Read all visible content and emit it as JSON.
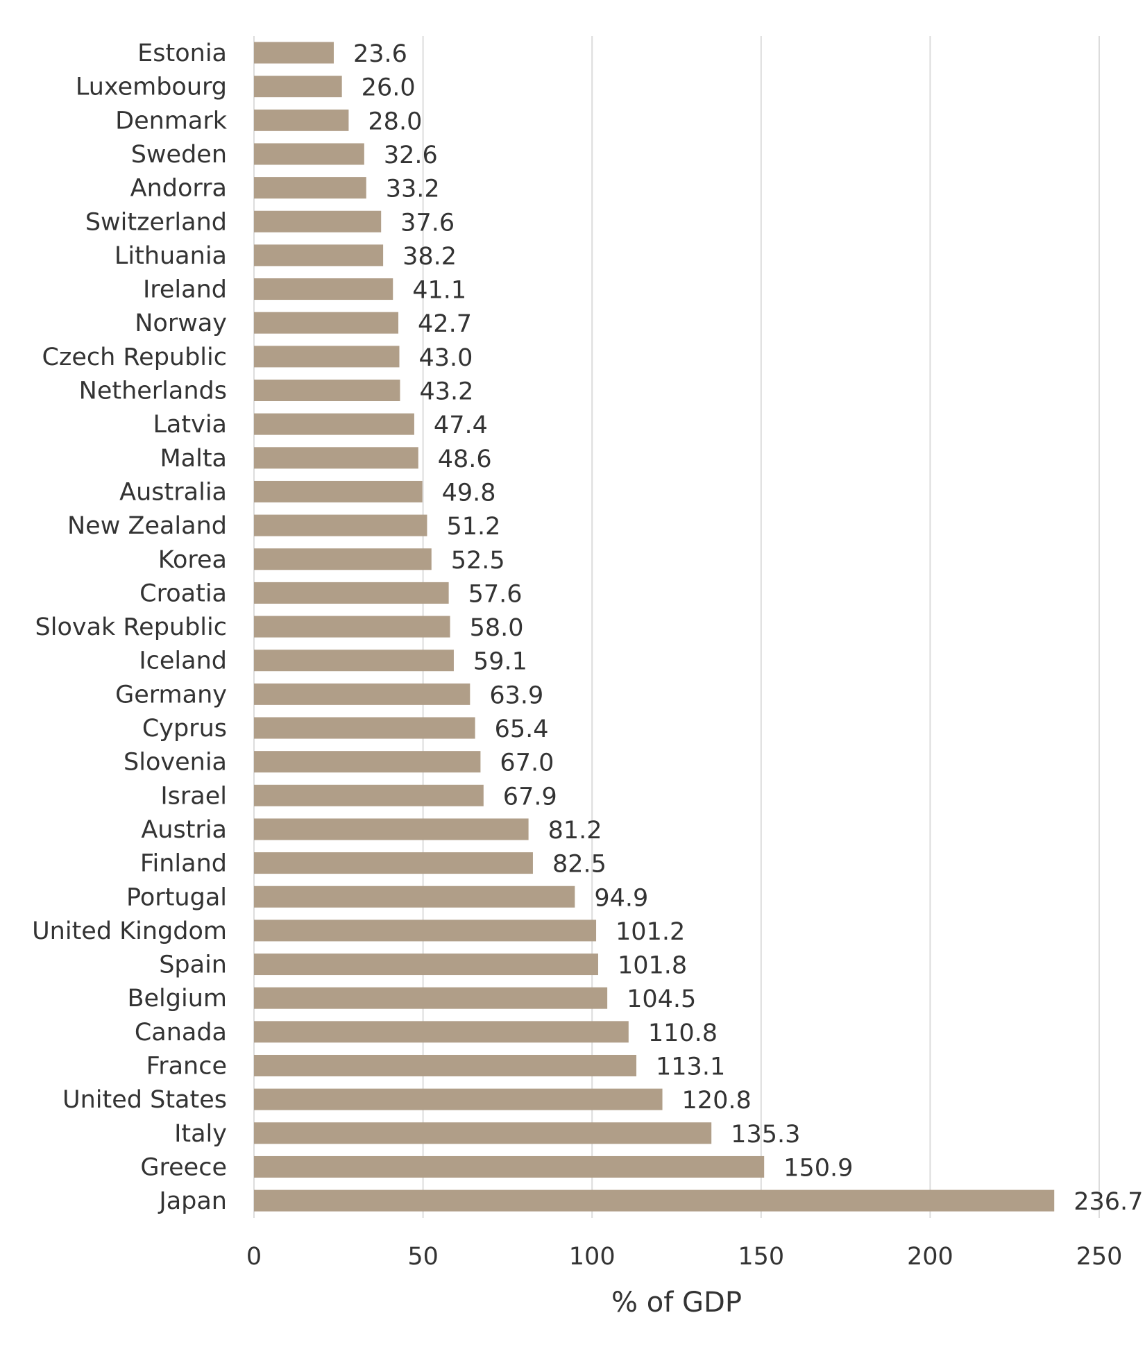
{
  "chart_data": {
    "type": "bar",
    "orientation": "horizontal",
    "categories": [
      "Estonia",
      "Luxembourg",
      "Denmark",
      "Sweden",
      "Andorra",
      "Switzerland",
      "Lithuania",
      "Ireland",
      "Norway",
      "Czech Republic",
      "Netherlands",
      "Latvia",
      "Malta",
      "Australia",
      "New Zealand",
      "Korea",
      "Croatia",
      "Slovak Republic",
      "Iceland",
      "Germany",
      "Cyprus",
      "Slovenia",
      "Israel",
      "Austria",
      "Finland",
      "Portugal",
      "United Kingdom",
      "Spain",
      "Belgium",
      "Canada",
      "France",
      "United States",
      "Italy",
      "Greece",
      "Japan"
    ],
    "values": [
      23.6,
      26.0,
      28.0,
      32.6,
      33.2,
      37.6,
      38.2,
      41.1,
      42.7,
      43.0,
      43.2,
      47.4,
      48.6,
      49.8,
      51.2,
      52.5,
      57.6,
      58.0,
      59.1,
      63.9,
      65.4,
      67.0,
      67.9,
      81.2,
      82.5,
      94.9,
      101.2,
      101.8,
      104.5,
      110.8,
      113.1,
      120.8,
      135.3,
      150.9,
      236.7
    ],
    "value_labels": [
      "23.6",
      "26.0",
      "28.0",
      "32.6",
      "33.2",
      "37.6",
      "38.2",
      "41.1",
      "42.7",
      "43.0",
      "43.2",
      "47.4",
      "48.6",
      "49.8",
      "51.2",
      "52.5",
      "57.6",
      "58.0",
      "59.1",
      "63.9",
      "65.4",
      "67.0",
      "67.9",
      "81.2",
      "82.5",
      "94.9",
      "101.2",
      "101.8",
      "104.5",
      "110.8",
      "113.1",
      "120.8",
      "135.3",
      "150.9",
      "236.7"
    ],
    "xlabel": "% of GDP",
    "ylabel": "",
    "title": "",
    "xlim": [
      0,
      250
    ],
    "xticks": [
      0,
      50,
      100,
      150,
      200,
      250
    ],
    "xtick_labels": [
      "0",
      "50",
      "100",
      "150",
      "200",
      "250"
    ],
    "grid": "vertical",
    "legend": "none",
    "colors": {
      "bar": "#b09e88",
      "grid": "#dcdcdc",
      "text": "#333333"
    }
  }
}
